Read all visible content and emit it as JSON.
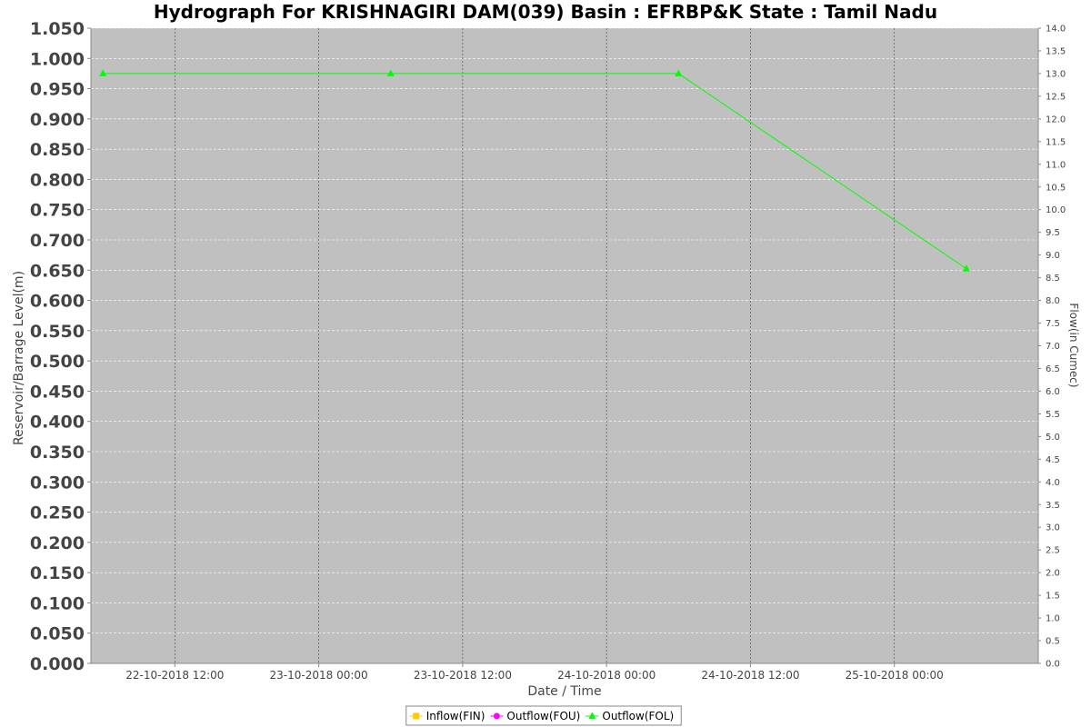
{
  "chart_data": {
    "type": "line",
    "title": "Hydrograph For KRISHNAGIRI DAM(039) Basin : EFRBP&K State : Tamil Nadu",
    "xlabel": "Date / Time",
    "ylabel": "Reservoir/Barrage Level(m)",
    "y2label": "Flow(in Cumec)",
    "ylim": [
      0,
      1.05
    ],
    "y_ticks": [
      "0.000",
      "0.050",
      "0.100",
      "0.150",
      "0.200",
      "0.250",
      "0.300",
      "0.350",
      "0.400",
      "0.450",
      "0.500",
      "0.550",
      "0.600",
      "0.650",
      "0.700",
      "0.750",
      "0.800",
      "0.850",
      "0.900",
      "0.950",
      "1.000",
      "1.050"
    ],
    "y2lim": [
      0,
      14
    ],
    "y2_ticks": [
      "0.0",
      "0.5",
      "1.0",
      "1.5",
      "2.0",
      "2.5",
      "3.0",
      "3.5",
      "4.0",
      "4.5",
      "5.0",
      "5.5",
      "6.0",
      "6.5",
      "7.0",
      "7.5",
      "8.0",
      "8.5",
      "9.0",
      "9.5",
      "10.0",
      "10.5",
      "11.0",
      "11.5",
      "12.0",
      "12.5",
      "13.0",
      "13.5",
      "14.0"
    ],
    "xlim": [
      "2018-10-22T05:00",
      "2018-10-25T12:00"
    ],
    "x_ticks": [
      {
        "t": "2018-10-22T12:00",
        "label": "22-10-2018 12:00"
      },
      {
        "t": "2018-10-23T00:00",
        "label": "23-10-2018 00:00"
      },
      {
        "t": "2018-10-23T12:00",
        "label": "23-10-2018 12:00"
      },
      {
        "t": "2018-10-24T00:00",
        "label": "24-10-2018 00:00"
      },
      {
        "t": "2018-10-24T12:00",
        "label": "24-10-2018 12:00"
      },
      {
        "t": "2018-10-25T00:00",
        "label": "25-10-2018 00:00"
      }
    ],
    "grid": true,
    "legend_position": "bottom",
    "series": [
      {
        "name": "Inflow(FIN)",
        "color": "#ffc800",
        "marker": "square",
        "axis": "right",
        "points": []
      },
      {
        "name": "Outflow(FOU)",
        "color": "#ff00ff",
        "marker": "circle",
        "axis": "right",
        "points": []
      },
      {
        "name": "Outflow(FOL)",
        "color": "#00ff00",
        "marker": "triangle",
        "axis": "right",
        "points": [
          {
            "x": "2018-10-22T06:00",
            "y": 13.0
          },
          {
            "x": "2018-10-23T06:00",
            "y": 13.0
          },
          {
            "x": "2018-10-24T06:00",
            "y": 13.0
          },
          {
            "x": "2018-10-25T06:00",
            "y": 8.7
          }
        ]
      }
    ]
  }
}
